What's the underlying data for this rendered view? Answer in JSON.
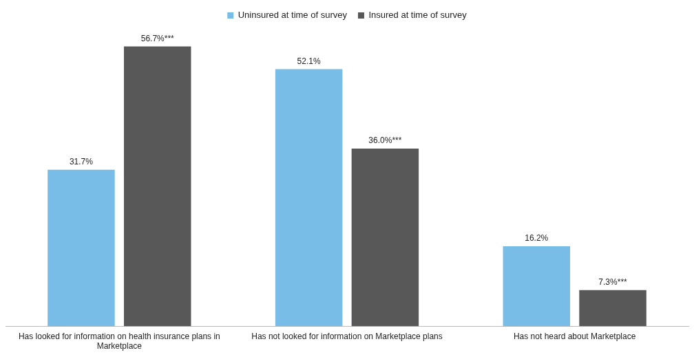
{
  "chart_data": {
    "type": "bar",
    "categories": [
      "Has looked for information on health insurance plans in Marketplace",
      "Has not looked for information on Marketplace plans",
      "Has not heard about Marketplace"
    ],
    "series": [
      {
        "name": "Uninsured at time of survey",
        "color": "#78bde8",
        "values": [
          31.7,
          52.1,
          16.2
        ],
        "value_labels": [
          "31.7%",
          "52.1%",
          "16.2%"
        ]
      },
      {
        "name": "Insured at time of survey",
        "color": "#585858",
        "values": [
          56.7,
          36.0,
          7.3
        ],
        "value_labels": [
          "56.7%***",
          "36.0%***",
          "7.3%***"
        ]
      }
    ],
    "legend": "top",
    "grid": false
  }
}
